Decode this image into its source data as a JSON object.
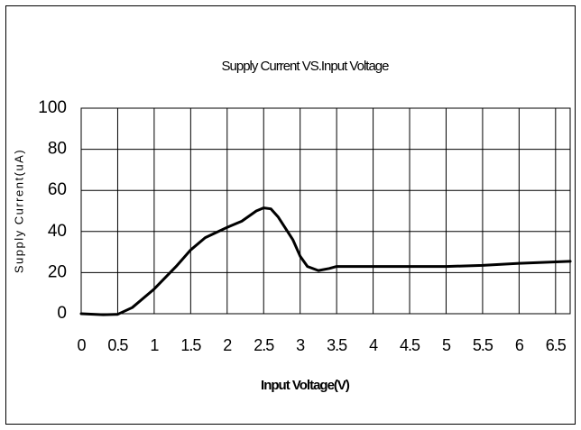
{
  "chart_data": {
    "type": "line",
    "title": "Supply Current VS.Input Voltage",
    "x_label": "Input Voltage(V)",
    "y_label": "Supply Current(uA)",
    "x": [
      0,
      0.3,
      0.5,
      0.7,
      1.0,
      1.3,
      1.5,
      1.7,
      2.0,
      2.2,
      2.4,
      2.5,
      2.6,
      2.7,
      2.9,
      3.0,
      3.1,
      3.25,
      3.4,
      3.5,
      4.0,
      5.0,
      5.5,
      6.0,
      6.7
    ],
    "values": [
      0,
      -0.5,
      -0.3,
      3,
      12,
      23,
      31,
      37,
      42,
      45,
      50,
      51.5,
      51,
      47,
      36,
      28,
      23,
      21,
      22,
      23,
      23,
      23,
      23.5,
      24.5,
      25.5
    ],
    "color": "#000000",
    "xlim": [
      0,
      6.7
    ],
    "xticks": [
      0,
      0.5,
      1,
      1.5,
      2,
      2.5,
      3,
      3.5,
      4,
      4.5,
      5,
      5.5,
      6,
      6.5
    ],
    "ylim": [
      0,
      100
    ],
    "yticks": [
      0,
      20,
      40,
      60,
      80,
      100
    ],
    "grid": true
  }
}
